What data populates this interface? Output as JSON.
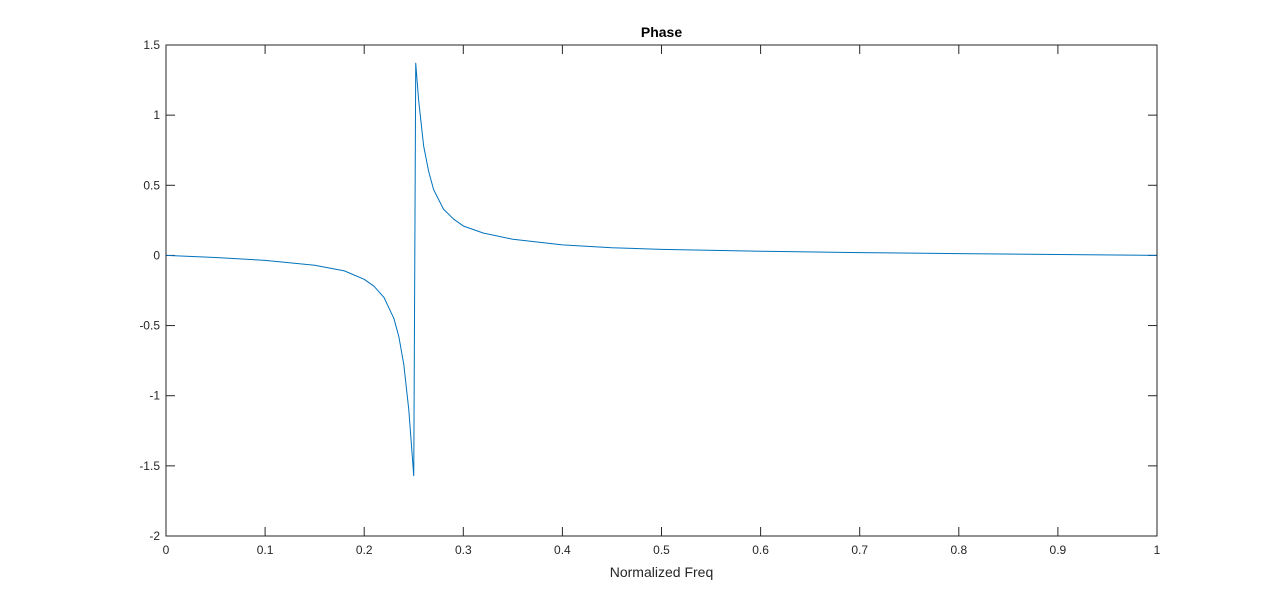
{
  "chart_data": {
    "type": "line",
    "title": "Phase",
    "xlabel": "Normalized Freq",
    "ylabel": "",
    "xlim": [
      0,
      1
    ],
    "ylim": [
      -2,
      1.5
    ],
    "xticks": [
      0,
      0.1,
      0.2,
      0.3,
      0.4,
      0.5,
      0.6,
      0.7,
      0.8,
      0.9,
      1
    ],
    "xtick_labels": [
      "0",
      "0.1",
      "0.2",
      "0.3",
      "0.4",
      "0.5",
      "0.6",
      "0.7",
      "0.8",
      "0.9",
      "1"
    ],
    "yticks": [
      -2,
      -1.5,
      -1,
      -0.5,
      0,
      0.5,
      1,
      1.5
    ],
    "ytick_labels": [
      "-2",
      "-1.5",
      "-1",
      "-0.5",
      "0",
      "0.5",
      "1",
      "1.5"
    ],
    "grid": false,
    "box": true,
    "series": [
      {
        "color": "#0072bd",
        "points": [
          [
            0,
            0
          ],
          [
            0.05,
            -0.015
          ],
          [
            0.1,
            -0.035
          ],
          [
            0.15,
            -0.07
          ],
          [
            0.18,
            -0.11
          ],
          [
            0.2,
            -0.17
          ],
          [
            0.21,
            -0.22
          ],
          [
            0.22,
            -0.3
          ],
          [
            0.23,
            -0.45
          ],
          [
            0.235,
            -0.58
          ],
          [
            0.24,
            -0.78
          ],
          [
            0.245,
            -1.1
          ],
          [
            0.25,
            -1.57
          ],
          [
            0.252,
            1.37
          ],
          [
            0.255,
            1.1
          ],
          [
            0.26,
            0.78
          ],
          [
            0.265,
            0.6
          ],
          [
            0.27,
            0.47
          ],
          [
            0.28,
            0.33
          ],
          [
            0.29,
            0.26
          ],
          [
            0.3,
            0.21
          ],
          [
            0.32,
            0.16
          ],
          [
            0.35,
            0.115
          ],
          [
            0.4,
            0.075
          ],
          [
            0.45,
            0.055
          ],
          [
            0.5,
            0.043
          ],
          [
            0.6,
            0.03
          ],
          [
            0.7,
            0.02
          ],
          [
            0.8,
            0.013
          ],
          [
            0.9,
            0.007
          ],
          [
            1,
            0
          ]
        ]
      }
    ]
  }
}
